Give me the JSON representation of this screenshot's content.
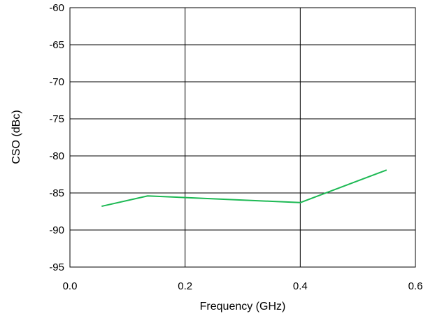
{
  "chart_data": {
    "type": "line",
    "title": "",
    "xlabel": "Frequency (GHz)",
    "ylabel": "CSO (dBc)",
    "xlim": [
      0.0,
      0.6
    ],
    "ylim": [
      -95,
      -60
    ],
    "x_ticks": [
      "0.0",
      "0.2",
      "0.4",
      "0.6"
    ],
    "y_ticks": [
      "-60",
      "-65",
      "-70",
      "-75",
      "-80",
      "-85",
      "-90",
      "-95"
    ],
    "grid": true,
    "series": [
      {
        "color": "#1db954",
        "x": [
          0.055,
          0.135,
          0.4,
          0.55
        ],
        "y": [
          -86.8,
          -85.4,
          -86.3,
          -81.9
        ]
      }
    ]
  }
}
